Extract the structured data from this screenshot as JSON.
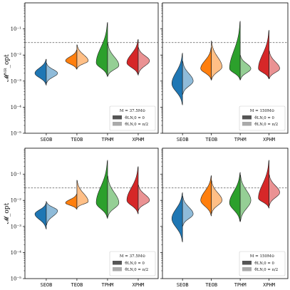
{
  "colors": {
    "SEOB": [
      "#1f77b4",
      "#8fbbd9"
    ],
    "TEOB": [
      "#ff7f0e",
      "#ffbf86"
    ],
    "TPHM": [
      "#2ca02c",
      "#95cf95"
    ],
    "XPHM": [
      "#d62728",
      "#ea9293"
    ],
    "legend_dark": "#555555",
    "legend_light": "#aaaaaa",
    "threshold_line": "#555555"
  },
  "chart_data": [
    {
      "type": "violin",
      "panel": "top-left",
      "categories": [
        "SEOB",
        "TEOB",
        "TPHM",
        "XPHM"
      ],
      "ylabel": "𝓜ᴺᴿ_opt",
      "yscale": "log",
      "ylim": [
        1e-05,
        1
      ],
      "yticks": [
        "10⁻⁵",
        "10⁻⁴",
        "10⁻³",
        "10⁻²",
        "10⁻¹"
      ],
      "threshold": 0.03,
      "legend": {
        "title": "M = 37.5M⊙",
        "items": [
          "ϑLN,0 = 0",
          "ϑLN,0 = π/2"
        ]
      },
      "series": [
        {
          "name": "ϑLN,0 = 0",
          "violins": [
            {
              "category": "SEOB",
              "min": 0.0007,
              "median": 0.002,
              "max": 0.007
            },
            {
              "category": "TEOB",
              "min": 0.0028,
              "median": 0.006,
              "max": 0.016
            },
            {
              "category": "TPHM",
              "min": 0.0015,
              "median": 0.005,
              "max": 0.18
            },
            {
              "category": "XPHM",
              "min": 0.0017,
              "median": 0.005,
              "max": 0.04
            }
          ]
        },
        {
          "name": "ϑLN,0 = π/2",
          "violins": [
            {
              "category": "SEOB",
              "min": 0.0008,
              "median": 0.002,
              "max": 0.005
            },
            {
              "category": "TEOB",
              "min": 0.003,
              "median": 0.006,
              "max": 0.025
            },
            {
              "category": "TPHM",
              "min": 0.0015,
              "median": 0.004,
              "max": 0.03
            },
            {
              "category": "XPHM",
              "min": 0.0018,
              "median": 0.006,
              "max": 0.02
            }
          ]
        }
      ]
    },
    {
      "type": "violin",
      "panel": "top-right",
      "categories": [
        "SEOB",
        "TEOB",
        "TPHM",
        "XPHM"
      ],
      "yscale": "log",
      "ylim": [
        1e-05,
        1
      ],
      "threshold": 0.03,
      "legend": {
        "title": "M = 150M⊙",
        "items": [
          "ϑLN,0 = 0",
          "ϑLN,0 = π/2"
        ]
      },
      "series": [
        {
          "name": "ϑLN,0 = 0",
          "violins": [
            {
              "category": "SEOB",
              "min": 0.00012,
              "median": 0.0008,
              "max": 0.012
            },
            {
              "category": "TEOB",
              "min": 0.0011,
              "median": 0.003,
              "max": 0.02
            },
            {
              "category": "TPHM",
              "min": 0.0011,
              "median": 0.003,
              "max": 0.2
            },
            {
              "category": "XPHM",
              "min": 0.0012,
              "median": 0.003,
              "max": 0.09
            }
          ]
        },
        {
          "name": "ϑLN,0 = π/2",
          "violins": [
            {
              "category": "SEOB",
              "min": 0.0003,
              "median": 0.001,
              "max": 0.006
            },
            {
              "category": "TEOB",
              "min": 0.0011,
              "median": 0.0035,
              "max": 0.035
            },
            {
              "category": "TPHM",
              "min": 0.0011,
              "median": 0.003,
              "max": 0.01
            },
            {
              "category": "XPHM",
              "min": 0.0012,
              "median": 0.003,
              "max": 0.015
            }
          ]
        }
      ]
    },
    {
      "type": "violin",
      "panel": "bottom-left",
      "categories": [
        "SEOB",
        "TEOB",
        "TPHM",
        "XPHM"
      ],
      "ylabel": "𝓜_opt",
      "yscale": "log",
      "ylim": [
        1e-05,
        1
      ],
      "yticks": [
        "10⁻⁵",
        "10⁻⁴",
        "10⁻³",
        "10⁻²",
        "10⁻¹"
      ],
      "threshold": 0.03,
      "legend": {
        "title": "M = 37.5M⊙",
        "items": [
          "ϑLN,0 = 0",
          "ϑLN,0 = π/2"
        ]
      },
      "series": [
        {
          "name": "ϑLN,0 = 0",
          "violins": [
            {
              "category": "SEOB",
              "min": 0.0008,
              "median": 0.003,
              "max": 0.008
            },
            {
              "category": "TEOB",
              "min": 0.0045,
              "median": 0.008,
              "max": 0.018
            },
            {
              "category": "TPHM",
              "min": 0.002,
              "median": 0.008,
              "max": 0.35
            },
            {
              "category": "XPHM",
              "min": 0.003,
              "median": 0.01,
              "max": 0.2
            }
          ]
        },
        {
          "name": "ϑLN,0 = π/2",
          "violins": [
            {
              "category": "SEOB",
              "min": 0.0011,
              "median": 0.004,
              "max": 0.009
            },
            {
              "category": "TEOB",
              "min": 0.005,
              "median": 0.009,
              "max": 0.06
            },
            {
              "category": "TPHM",
              "min": 0.0022,
              "median": 0.008,
              "max": 0.09
            },
            {
              "category": "XPHM",
              "min": 0.004,
              "median": 0.01,
              "max": 0.04
            }
          ]
        }
      ]
    },
    {
      "type": "violin",
      "panel": "bottom-right",
      "categories": [
        "SEOB",
        "TEOB",
        "TPHM",
        "XPHM"
      ],
      "yscale": "log",
      "ylim": [
        1e-05,
        1
      ],
      "threshold": 0.03,
      "legend": {
        "title": "M = 150M⊙",
        "items": [
          "ϑLN,0 = 0",
          "ϑLN,0 = π/2"
        ]
      },
      "series": [
        {
          "name": "ϑLN,0 = 0",
          "violins": [
            {
              "category": "SEOB",
              "min": 0.00025,
              "median": 0.002,
              "max": 0.02
            },
            {
              "category": "TEOB",
              "min": 0.0025,
              "median": 0.01,
              "max": 0.09
            },
            {
              "category": "TPHM",
              "min": 0.0015,
              "median": 0.008,
              "max": 0.12
            },
            {
              "category": "XPHM",
              "min": 0.005,
              "median": 0.012,
              "max": 0.35
            }
          ]
        },
        {
          "name": "ϑLN,0 = π/2",
          "violins": [
            {
              "category": "SEOB",
              "min": 0.001,
              "median": 0.003,
              "max": 0.015
            },
            {
              "category": "TEOB",
              "min": 0.003,
              "median": 0.01,
              "max": 0.06
            },
            {
              "category": "TPHM",
              "min": 0.0015,
              "median": 0.01,
              "max": 0.1
            },
            {
              "category": "XPHM",
              "min": 0.006,
              "median": 0.02,
              "max": 0.1
            }
          ]
        }
      ]
    }
  ]
}
